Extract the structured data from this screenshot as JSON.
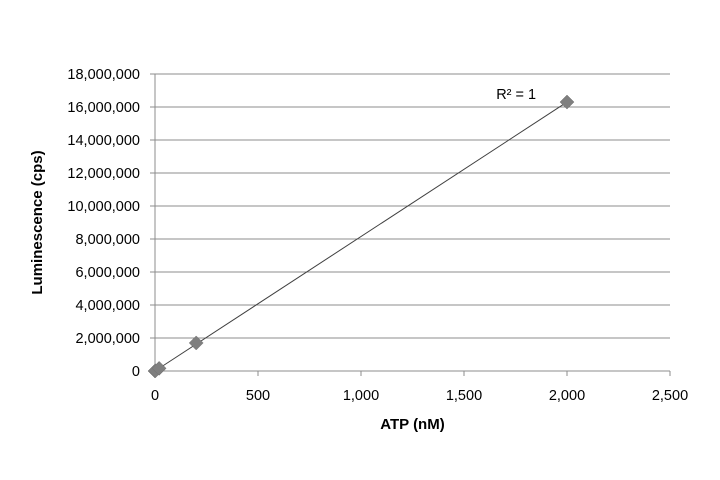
{
  "chart_data": {
    "type": "scatter",
    "title": "",
    "xlabel": "ATP (nM)",
    "ylabel": "Luminescence (cps)",
    "xlim": [
      0,
      2500
    ],
    "ylim": [
      0,
      18000000
    ],
    "x_ticks": [
      {
        "value": 0,
        "label": "0"
      },
      {
        "value": 500,
        "label": "500"
      },
      {
        "value": 1000,
        "label": "1,000"
      },
      {
        "value": 1500,
        "label": "1,500"
      },
      {
        "value": 2000,
        "label": "2,000"
      },
      {
        "value": 2500,
        "label": "2,500"
      }
    ],
    "y_ticks": [
      {
        "value": 0,
        "label": "0"
      },
      {
        "value": 2000000,
        "label": "2,000,000"
      },
      {
        "value": 4000000,
        "label": "4,000,000"
      },
      {
        "value": 6000000,
        "label": "6,000,000"
      },
      {
        "value": 8000000,
        "label": "8,000,000"
      },
      {
        "value": 10000000,
        "label": "10,000,000"
      },
      {
        "value": 12000000,
        "label": "12,000,000"
      },
      {
        "value": 14000000,
        "label": "14,000,000"
      },
      {
        "value": 16000000,
        "label": "16,000,000"
      },
      {
        "value": 18000000,
        "label": "18,000,000"
      }
    ],
    "grid": "horizontal",
    "legend": "none",
    "series": [
      {
        "marker": "diamond",
        "color": "#7f7f7f",
        "points": [
          {
            "x": 0,
            "y": 0
          },
          {
            "x": 2,
            "y": 16000
          },
          {
            "x": 20,
            "y": 160000
          },
          {
            "x": 200,
            "y": 1700000
          },
          {
            "x": 2000,
            "y": 16300000
          }
        ]
      }
    ],
    "trendline": {
      "type": "linear",
      "color": "#404040",
      "from": {
        "x": 0,
        "y": 0
      },
      "to": {
        "x": 2000,
        "y": 16300000
      }
    },
    "annotations": [
      {
        "text": "R² = 1",
        "x": 1850,
        "y": 16500000
      }
    ]
  }
}
